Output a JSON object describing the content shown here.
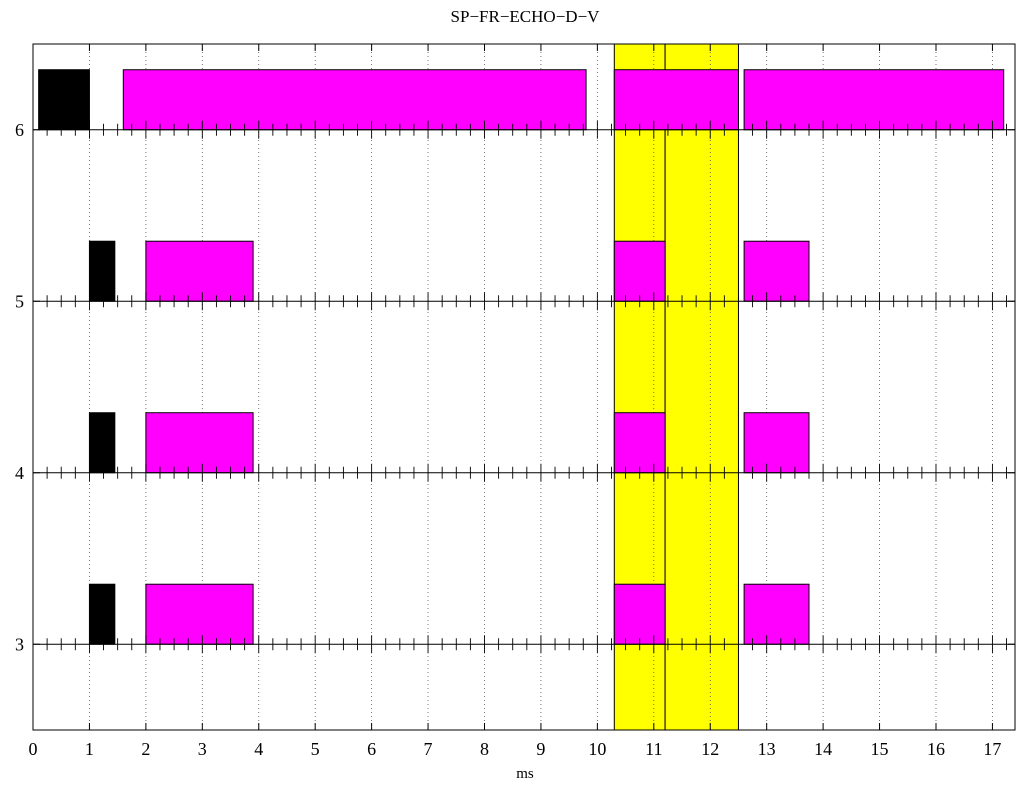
{
  "chart_data": {
    "type": "timing-diagram",
    "title": "SP−FR−ECHO−D−V",
    "xlabel": "ms",
    "ylabel": "",
    "xlim": [
      0,
      17.4
    ],
    "ylim": [
      2.5,
      6.5
    ],
    "x_ticks": [
      "0",
      "1",
      "2",
      "3",
      "4",
      "5",
      "6",
      "7",
      "8",
      "9",
      "10",
      "11",
      "12",
      "13",
      "14",
      "15",
      "16",
      "17"
    ],
    "y_ticks": [
      "3",
      "4",
      "5",
      "6"
    ],
    "grid": "vertical dotted at integer ms",
    "highlight_regions": [
      {
        "x0": 10.3,
        "x1": 11.2,
        "color": "#ffff00"
      },
      {
        "x0": 11.2,
        "x1": 12.5,
        "color": "#ffff00"
      }
    ],
    "channels": [
      {
        "y": 6,
        "blocks": [
          {
            "x0": 0.1,
            "x1": 1.0,
            "height": 0.35,
            "color": "#000000"
          },
          {
            "x0": 1.6,
            "x1": 9.8,
            "height": 0.35,
            "color": "#ff00ff"
          },
          {
            "x0": 10.3,
            "x1": 12.5,
            "height": 0.35,
            "color": "#ff00ff"
          },
          {
            "x0": 12.6,
            "x1": 17.2,
            "height": 0.35,
            "color": "#ff00ff"
          }
        ]
      },
      {
        "y": 5,
        "blocks": [
          {
            "x0": 1.0,
            "x1": 1.45,
            "height": 0.35,
            "color": "#000000"
          },
          {
            "x0": 2.0,
            "x1": 3.9,
            "height": 0.35,
            "color": "#ff00ff"
          },
          {
            "x0": 10.3,
            "x1": 11.2,
            "height": 0.35,
            "color": "#ff00ff"
          },
          {
            "x0": 12.6,
            "x1": 13.75,
            "height": 0.35,
            "color": "#ff00ff"
          }
        ]
      },
      {
        "y": 4,
        "blocks": [
          {
            "x0": 1.0,
            "x1": 1.45,
            "height": 0.35,
            "color": "#000000"
          },
          {
            "x0": 2.0,
            "x1": 3.9,
            "height": 0.35,
            "color": "#ff00ff"
          },
          {
            "x0": 10.3,
            "x1": 11.2,
            "height": 0.35,
            "color": "#ff00ff"
          },
          {
            "x0": 12.6,
            "x1": 13.75,
            "height": 0.35,
            "color": "#ff00ff"
          }
        ]
      },
      {
        "y": 3,
        "blocks": [
          {
            "x0": 1.0,
            "x1": 1.45,
            "height": 0.35,
            "color": "#000000"
          },
          {
            "x0": 2.0,
            "x1": 3.9,
            "height": 0.35,
            "color": "#ff00ff"
          },
          {
            "x0": 10.3,
            "x1": 11.2,
            "height": 0.35,
            "color": "#ff00ff"
          },
          {
            "x0": 12.6,
            "x1": 13.75,
            "height": 0.35,
            "color": "#ff00ff"
          }
        ]
      }
    ]
  }
}
